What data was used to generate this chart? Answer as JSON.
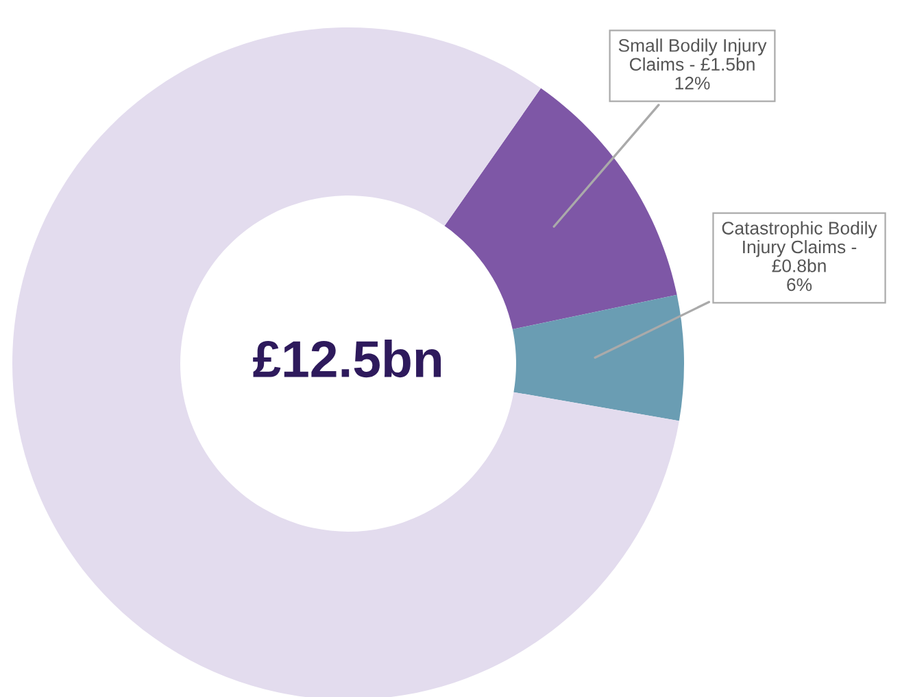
{
  "chart_data": {
    "type": "donut",
    "categories": [
      "Small Bodily Injury\nClaims - £1.5bn",
      "Catastrophic Bodily\nInjury Claims -\n£0.8bn",
      null
    ],
    "values": [
      12,
      6,
      82
    ],
    "value_labels": [
      "12%",
      "6%",
      null
    ],
    "colors": [
      "#7e57a6",
      "#6a9db3",
      "#e3dcee"
    ],
    "annotations": [
      "£12.5bn"
    ],
    "legend": false
  }
}
